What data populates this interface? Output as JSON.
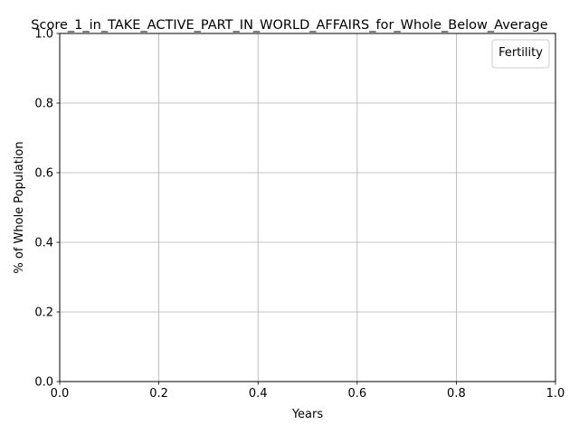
{
  "chart_data": {
    "type": "line",
    "title": "Score_1_in_TAKE_ACTIVE_PART_IN_WORLD_AFFAIRS_for_Whole_Below_Average",
    "xlabel": "Years",
    "ylabel": "% of Whole Population",
    "xlim": [
      0.0,
      1.0
    ],
    "ylim": [
      0.0,
      1.0
    ],
    "xticks": [
      "0.0",
      "0.2",
      "0.4",
      "0.6",
      "0.8",
      "1.0"
    ],
    "yticks": [
      "0.0",
      "0.2",
      "0.4",
      "0.6",
      "0.8",
      "1.0"
    ],
    "grid": true,
    "legend": {
      "title": "Fertility",
      "placement": "top-right",
      "entries": []
    },
    "series": []
  }
}
